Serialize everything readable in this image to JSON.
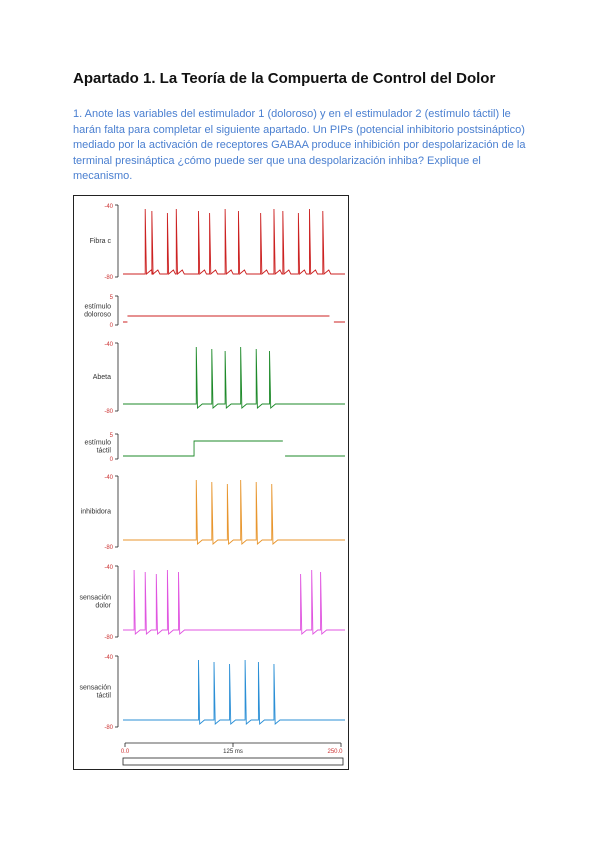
{
  "heading": "Apartado 1. La Teoría de la Compuerta de Control del Dolor",
  "question": "1. Anote las variables del estimulador 1 (doloroso) y en el estimulador 2 (estímulo táctil) le harán falta para completar el siguiente apartado. Un PIPs (potencial inhibitorio postsináptico) mediado por la activación de receptores GABAA produce inhibición por despolarización de la terminal presináptica ¿cómo puede ser que una despolarización inhiba? Explique el mecanismo.",
  "figure": {
    "panels": [
      {
        "label_lines": [
          "Fibra c"
        ],
        "ymax": "-40",
        "ymin": "-80",
        "color": "#cc2222"
      },
      {
        "label_lines": [
          "estímulo",
          "doloroso"
        ],
        "ymax": "5",
        "ymin": "0",
        "color": "#cc2222"
      },
      {
        "label_lines": [
          "Abeta"
        ],
        "ymax": "-40",
        "ymin": "-80",
        "color": "#1e8a2a"
      },
      {
        "label_lines": [
          "estímulo",
          "táctil"
        ],
        "ymax": "5",
        "ymin": "0",
        "color": "#1e8a2a"
      },
      {
        "label_lines": [
          "inhibidora"
        ],
        "ymax": "-40",
        "ymin": "-80",
        "color": "#e8962e"
      },
      {
        "label_lines": [
          "sensación",
          "dolor"
        ],
        "ymax": "-40",
        "ymin": "-80",
        "color": "#e055e0"
      },
      {
        "label_lines": [
          "sensación",
          "táctil"
        ],
        "ymax": "-40",
        "ymin": "-80",
        "color": "#2b8fd6"
      }
    ],
    "time_axis": {
      "start": "0.0",
      "mid": "125 ms",
      "end": "250.0"
    }
  }
}
